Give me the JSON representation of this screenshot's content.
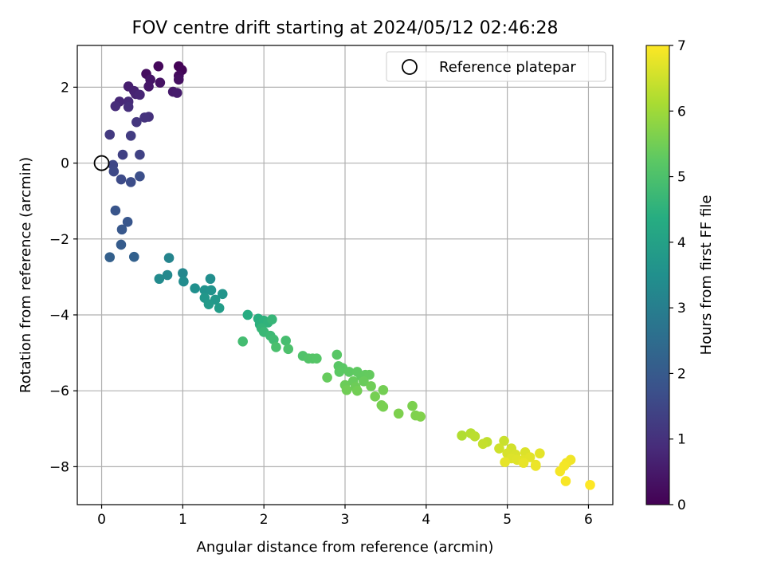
{
  "chart_data": {
    "type": "scatter",
    "title": "FOV centre drift starting at 2024/05/12 02:46:28",
    "xlabel": "Angular distance from reference (arcmin)",
    "ylabel": "Rotation from reference (arcmin)",
    "xlim": [
      -0.3,
      6.3
    ],
    "ylim": [
      -9.0,
      3.1
    ],
    "xticks": [
      0,
      1,
      2,
      3,
      4,
      5,
      6
    ],
    "yticks": [
      -8,
      -6,
      -4,
      -2,
      0,
      2
    ],
    "xtick_labels": [
      "0",
      "1",
      "2",
      "3",
      "4",
      "5",
      "6"
    ],
    "ytick_labels": [
      "−8",
      "−6",
      "−4",
      "−2",
      "0",
      "2"
    ],
    "grid": true,
    "legend": {
      "placement": "top-right",
      "entries": [
        "Reference platepar"
      ]
    },
    "reference_point": {
      "x": 0,
      "y": 0,
      "label": "Reference platepar"
    },
    "colorbar": {
      "label": "Hours from first FF file",
      "range": [
        0,
        7
      ],
      "ticks": [
        0,
        1,
        2,
        3,
        4,
        5,
        6,
        7
      ],
      "tick_labels": [
        "0",
        "1",
        "2",
        "3",
        "4",
        "5",
        "6",
        "7"
      ],
      "colormap": "viridis"
    },
    "points": [
      {
        "x": 0.95,
        "y": 2.55,
        "c": 0.05
      },
      {
        "x": 0.99,
        "y": 2.45,
        "c": 0.1
      },
      {
        "x": 0.7,
        "y": 2.55,
        "c": 0.15
      },
      {
        "x": 0.95,
        "y": 2.3,
        "c": 0.2
      },
      {
        "x": 0.55,
        "y": 2.35,
        "c": 0.25
      },
      {
        "x": 0.95,
        "y": 2.2,
        "c": 0.3
      },
      {
        "x": 0.72,
        "y": 2.12,
        "c": 0.35
      },
      {
        "x": 0.6,
        "y": 2.2,
        "c": 0.4
      },
      {
        "x": 0.58,
        "y": 2.02,
        "c": 0.45
      },
      {
        "x": 0.88,
        "y": 1.88,
        "c": 0.5
      },
      {
        "x": 0.93,
        "y": 1.85,
        "c": 0.55
      },
      {
        "x": 0.33,
        "y": 2.02,
        "c": 0.6
      },
      {
        "x": 0.4,
        "y": 1.9,
        "c": 0.65
      },
      {
        "x": 0.42,
        "y": 1.82,
        "c": 0.7
      },
      {
        "x": 0.47,
        "y": 1.8,
        "c": 0.75
      },
      {
        "x": 0.22,
        "y": 1.62,
        "c": 0.8
      },
      {
        "x": 0.33,
        "y": 1.62,
        "c": 0.85
      },
      {
        "x": 0.17,
        "y": 1.5,
        "c": 0.9
      },
      {
        "x": 0.33,
        "y": 1.48,
        "c": 0.95
      },
      {
        "x": 0.58,
        "y": 1.22,
        "c": 1.0
      },
      {
        "x": 0.53,
        "y": 1.2,
        "c": 1.05
      },
      {
        "x": 0.43,
        "y": 1.08,
        "c": 1.1
      },
      {
        "x": 0.1,
        "y": 0.75,
        "c": 1.2
      },
      {
        "x": 0.36,
        "y": 0.72,
        "c": 1.25
      },
      {
        "x": 0.26,
        "y": 0.22,
        "c": 1.35
      },
      {
        "x": 0.47,
        "y": 0.22,
        "c": 1.4
      },
      {
        "x": 0.14,
        "y": -0.05,
        "c": 1.5
      },
      {
        "x": 0.15,
        "y": -0.22,
        "c": 1.55
      },
      {
        "x": 0.24,
        "y": -0.43,
        "c": 1.6
      },
      {
        "x": 0.36,
        "y": -0.5,
        "c": 1.65
      },
      {
        "x": 0.47,
        "y": -0.35,
        "c": 1.7
      },
      {
        "x": 0.17,
        "y": -1.25,
        "c": 1.85
      },
      {
        "x": 0.32,
        "y": -1.55,
        "c": 1.9
      },
      {
        "x": 0.25,
        "y": -1.75,
        "c": 1.95
      },
      {
        "x": 0.24,
        "y": -2.15,
        "c": 2.05
      },
      {
        "x": 0.1,
        "y": -2.48,
        "c": 2.15
      },
      {
        "x": 0.4,
        "y": -2.47,
        "c": 2.2
      },
      {
        "x": 0.83,
        "y": -2.5,
        "c": 3.15
      },
      {
        "x": 1.0,
        "y": -2.9,
        "c": 3.25
      },
      {
        "x": 0.81,
        "y": -2.95,
        "c": 3.3
      },
      {
        "x": 0.71,
        "y": -3.05,
        "c": 3.35
      },
      {
        "x": 1.01,
        "y": -3.12,
        "c": 3.4
      },
      {
        "x": 1.34,
        "y": -3.05,
        "c": 3.45
      },
      {
        "x": 1.15,
        "y": -3.3,
        "c": 3.5
      },
      {
        "x": 1.27,
        "y": -3.35,
        "c": 3.55
      },
      {
        "x": 1.35,
        "y": -3.35,
        "c": 3.6
      },
      {
        "x": 1.49,
        "y": -3.45,
        "c": 3.65
      },
      {
        "x": 1.27,
        "y": -3.55,
        "c": 3.7
      },
      {
        "x": 1.4,
        "y": -3.6,
        "c": 3.75
      },
      {
        "x": 1.32,
        "y": -3.72,
        "c": 3.8
      },
      {
        "x": 1.45,
        "y": -3.82,
        "c": 3.85
      },
      {
        "x": 1.8,
        "y": -4.0,
        "c": 4.35
      },
      {
        "x": 1.93,
        "y": -4.1,
        "c": 4.4
      },
      {
        "x": 1.95,
        "y": -4.25,
        "c": 4.45
      },
      {
        "x": 2.0,
        "y": -4.15,
        "c": 4.5
      },
      {
        "x": 2.05,
        "y": -4.2,
        "c": 4.55
      },
      {
        "x": 1.97,
        "y": -4.35,
        "c": 4.6
      },
      {
        "x": 2.1,
        "y": -4.12,
        "c": 4.65
      },
      {
        "x": 2.0,
        "y": -4.45,
        "c": 4.7
      },
      {
        "x": 2.08,
        "y": -4.55,
        "c": 4.75
      },
      {
        "x": 2.12,
        "y": -4.65,
        "c": 4.8
      },
      {
        "x": 1.74,
        "y": -4.7,
        "c": 4.85
      },
      {
        "x": 2.27,
        "y": -4.68,
        "c": 4.9
      },
      {
        "x": 2.15,
        "y": -4.85,
        "c": 4.95
      },
      {
        "x": 2.3,
        "y": -4.9,
        "c": 5.0
      },
      {
        "x": 2.48,
        "y": -5.08,
        "c": 5.05
      },
      {
        "x": 2.55,
        "y": -5.15,
        "c": 5.1
      },
      {
        "x": 2.6,
        "y": -5.15,
        "c": 5.12
      },
      {
        "x": 2.65,
        "y": -5.15,
        "c": 5.14
      },
      {
        "x": 2.9,
        "y": -5.05,
        "c": 5.18
      },
      {
        "x": 2.92,
        "y": -5.35,
        "c": 5.2
      },
      {
        "x": 2.97,
        "y": -5.4,
        "c": 5.22
      },
      {
        "x": 2.93,
        "y": -5.5,
        "c": 5.24
      },
      {
        "x": 3.05,
        "y": -5.5,
        "c": 5.26
      },
      {
        "x": 3.15,
        "y": -5.5,
        "c": 5.28
      },
      {
        "x": 3.2,
        "y": -5.62,
        "c": 5.3
      },
      {
        "x": 3.25,
        "y": -5.58,
        "c": 5.32
      },
      {
        "x": 3.3,
        "y": -5.58,
        "c": 5.34
      },
      {
        "x": 2.78,
        "y": -5.65,
        "c": 5.36
      },
      {
        "x": 3.1,
        "y": -5.75,
        "c": 5.38
      },
      {
        "x": 3.23,
        "y": -5.75,
        "c": 5.4
      },
      {
        "x": 3.0,
        "y": -5.85,
        "c": 5.42
      },
      {
        "x": 3.13,
        "y": -5.9,
        "c": 5.44
      },
      {
        "x": 3.32,
        "y": -5.88,
        "c": 5.46
      },
      {
        "x": 3.02,
        "y": -5.98,
        "c": 5.48
      },
      {
        "x": 3.15,
        "y": -6.0,
        "c": 5.5
      },
      {
        "x": 3.47,
        "y": -5.98,
        "c": 5.52
      },
      {
        "x": 3.37,
        "y": -6.15,
        "c": 5.54
      },
      {
        "x": 3.45,
        "y": -6.38,
        "c": 5.56
      },
      {
        "x": 3.47,
        "y": -6.42,
        "c": 5.58
      },
      {
        "x": 3.83,
        "y": -6.4,
        "c": 5.6
      },
      {
        "x": 3.66,
        "y": -6.6,
        "c": 5.62
      },
      {
        "x": 3.87,
        "y": -6.65,
        "c": 5.64
      },
      {
        "x": 3.93,
        "y": -6.68,
        "c": 5.66
      },
      {
        "x": 4.44,
        "y": -7.18,
        "c": 6.2
      },
      {
        "x": 4.55,
        "y": -7.12,
        "c": 6.25
      },
      {
        "x": 4.6,
        "y": -7.2,
        "c": 6.3
      },
      {
        "x": 4.75,
        "y": -7.35,
        "c": 6.35
      },
      {
        "x": 4.7,
        "y": -7.4,
        "c": 6.4
      },
      {
        "x": 4.96,
        "y": -7.32,
        "c": 6.45
      },
      {
        "x": 4.9,
        "y": -7.52,
        "c": 6.5
      },
      {
        "x": 5.05,
        "y": -7.52,
        "c": 6.55
      },
      {
        "x": 5.0,
        "y": -7.65,
        "c": 6.6
      },
      {
        "x": 5.1,
        "y": -7.68,
        "c": 6.62
      },
      {
        "x": 5.22,
        "y": -7.62,
        "c": 6.64
      },
      {
        "x": 5.05,
        "y": -7.78,
        "c": 6.66
      },
      {
        "x": 5.12,
        "y": -7.82,
        "c": 6.68
      },
      {
        "x": 5.2,
        "y": -7.82,
        "c": 6.7
      },
      {
        "x": 5.28,
        "y": -7.75,
        "c": 6.72
      },
      {
        "x": 5.4,
        "y": -7.65,
        "c": 6.74
      },
      {
        "x": 4.97,
        "y": -7.88,
        "c": 6.76
      },
      {
        "x": 5.2,
        "y": -7.9,
        "c": 6.78
      },
      {
        "x": 5.35,
        "y": -7.95,
        "c": 6.8
      },
      {
        "x": 5.35,
        "y": -7.98,
        "c": 6.82
      },
      {
        "x": 5.78,
        "y": -7.82,
        "c": 6.86
      },
      {
        "x": 5.73,
        "y": -7.9,
        "c": 6.88
      },
      {
        "x": 5.7,
        "y": -7.98,
        "c": 6.9
      },
      {
        "x": 5.65,
        "y": -8.12,
        "c": 6.92
      },
      {
        "x": 5.72,
        "y": -8.38,
        "c": 6.95
      },
      {
        "x": 6.02,
        "y": -8.48,
        "c": 7.0
      }
    ]
  }
}
